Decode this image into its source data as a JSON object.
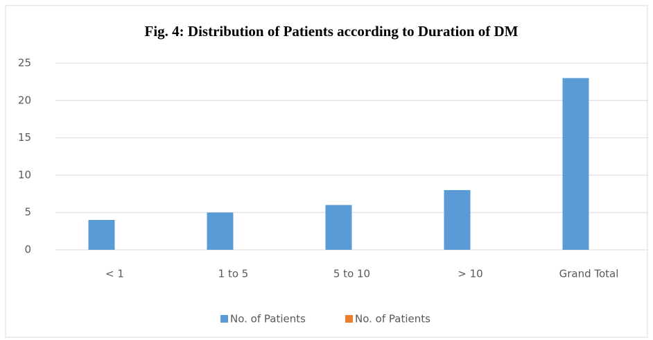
{
  "chart_data": {
    "type": "bar",
    "title": "Fig. 4: Distribution of Patients according to Duration of DM",
    "categories": [
      "< 1",
      "1 to 5",
      "5 to 10",
      "> 10",
      "Grand Total"
    ],
    "series": [
      {
        "name": "No. of Patients",
        "color": "#5b9bd5",
        "values": [
          4,
          5,
          6,
          8,
          23
        ]
      },
      {
        "name": "No. of Patients",
        "color": "#ed7d31",
        "values": [
          null,
          null,
          null,
          null,
          null
        ]
      }
    ],
    "ylim": [
      0,
      25
    ],
    "yticks": [
      0,
      5,
      10,
      15,
      20,
      25
    ],
    "grid": true,
    "legend": "bottom"
  }
}
